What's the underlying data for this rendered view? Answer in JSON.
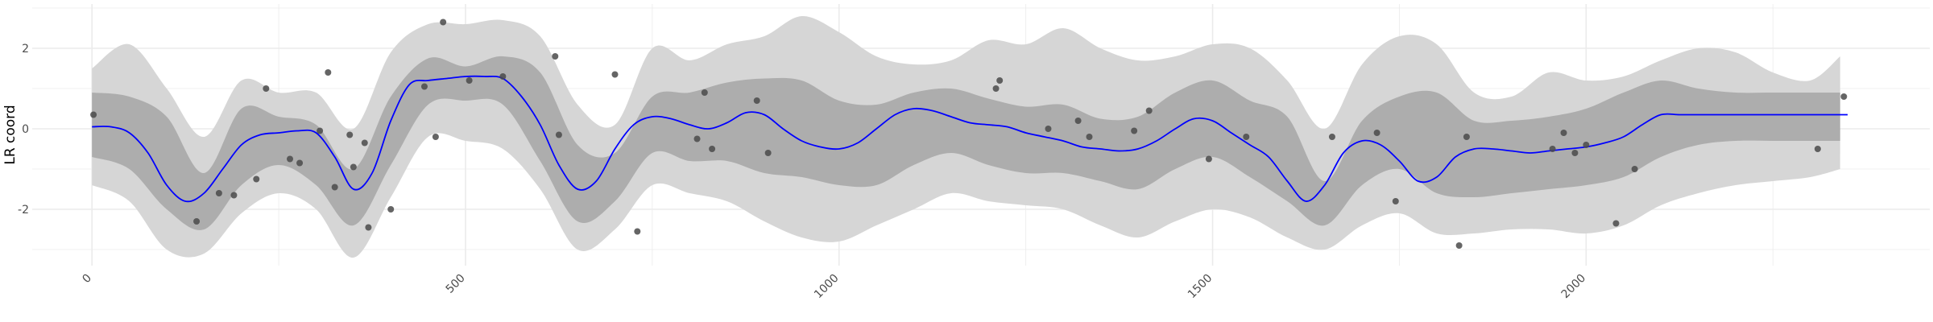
{
  "chart_data": {
    "type": "line",
    "title": "",
    "xlabel": "",
    "ylabel": "LR coord",
    "xlim": [
      -80,
      2460
    ],
    "ylim": [
      -3.4,
      3.1
    ],
    "x_ticks": [
      0,
      500,
      1000,
      1500,
      2000
    ],
    "x_tick_labels": [
      "0",
      "500",
      "1000",
      "1500",
      "2000"
    ],
    "y_ticks": [
      -2,
      0,
      2
    ],
    "y_tick_labels": [
      "-2",
      "0",
      "2"
    ],
    "grid": true,
    "colors": {
      "line": "#0000ff",
      "inner_band": "#adadad",
      "outer_band": "#d6d6d6",
      "points": "#4a4a4a",
      "grid": "#ebebeb"
    },
    "series": [
      {
        "type": "line",
        "x": [
          0,
          25,
          50,
          75,
          100,
          125,
          150,
          175,
          200,
          225,
          250,
          275,
          300,
          325,
          350,
          375,
          400,
          425,
          450,
          475,
          500,
          525,
          550,
          575,
          600,
          625,
          650,
          675,
          700,
          725,
          750,
          775,
          800,
          825,
          850,
          875,
          900,
          925,
          950,
          975,
          1000,
          1025,
          1050,
          1075,
          1100,
          1125,
          1150,
          1175,
          1200,
          1225,
          1250,
          1275,
          1300,
          1325,
          1350,
          1375,
          1400,
          1425,
          1450,
          1475,
          1500,
          1525,
          1550,
          1575,
          1600,
          1625,
          1650,
          1675,
          1700,
          1725,
          1750,
          1775,
          1800,
          1825,
          1850,
          1875,
          1900,
          1925,
          1950,
          1975,
          2000,
          2025,
          2050,
          2075,
          2100,
          2125,
          2150,
          2175,
          2200,
          2225,
          2250,
          2275,
          2300,
          2325,
          2350
        ],
        "values": [
          0.05,
          0.05,
          -0.1,
          -0.6,
          -1.4,
          -1.8,
          -1.6,
          -1.0,
          -0.4,
          -0.15,
          -0.1,
          -0.05,
          -0.1,
          -0.7,
          -1.5,
          -1.1,
          0.2,
          1.1,
          1.2,
          1.25,
          1.3,
          1.3,
          1.25,
          0.8,
          0.1,
          -0.9,
          -1.5,
          -1.3,
          -0.5,
          0.1,
          0.3,
          0.25,
          0.1,
          0.0,
          0.15,
          0.4,
          0.35,
          0.0,
          -0.3,
          -0.45,
          -0.5,
          -0.35,
          0.0,
          0.35,
          0.5,
          0.45,
          0.3,
          0.15,
          0.1,
          0.05,
          -0.1,
          -0.2,
          -0.3,
          -0.45,
          -0.5,
          -0.55,
          -0.5,
          -0.3,
          0.0,
          0.25,
          0.2,
          -0.1,
          -0.4,
          -0.7,
          -1.3,
          -1.8,
          -1.4,
          -0.6,
          -0.3,
          -0.4,
          -0.8,
          -1.3,
          -1.2,
          -0.7,
          -0.5,
          -0.5,
          -0.55,
          -0.6,
          -0.55,
          -0.5,
          -0.45,
          -0.35,
          -0.2,
          0.1,
          0.35,
          0.35,
          0.35,
          0.35,
          0.35,
          0.35,
          0.35,
          0.35,
          0.35,
          0.35,
          0.35
        ]
      },
      {
        "type": "band",
        "level": "inner",
        "x": [
          0,
          50,
          100,
          150,
          200,
          250,
          300,
          350,
          400,
          450,
          500,
          550,
          600,
          650,
          700,
          750,
          800,
          850,
          900,
          950,
          1000,
          1050,
          1100,
          1150,
          1200,
          1250,
          1300,
          1350,
          1400,
          1450,
          1500,
          1550,
          1600,
          1650,
          1700,
          1750,
          1800,
          1850,
          1900,
          1950,
          2000,
          2050,
          2100,
          2150,
          2200,
          2250,
          2300,
          2340
        ],
        "upper": [
          0.9,
          0.8,
          0.3,
          -1.1,
          0.5,
          0.3,
          0.1,
          -1.0,
          0.8,
          1.75,
          1.55,
          1.8,
          1.4,
          -0.4,
          -0.6,
          0.8,
          0.9,
          1.15,
          1.25,
          1.2,
          0.7,
          0.6,
          0.9,
          1.0,
          0.75,
          0.55,
          0.6,
          0.25,
          0.3,
          0.9,
          1.2,
          0.7,
          0.3,
          -1.3,
          0.2,
          0.8,
          0.9,
          0.2,
          0.2,
          0.3,
          0.5,
          0.9,
          1.2,
          1.0,
          0.9,
          0.9,
          0.9,
          0.9
        ],
        "lower": [
          -0.7,
          -1.0,
          -2.0,
          -2.5,
          -1.4,
          -0.9,
          -1.4,
          -2.4,
          -0.9,
          0.6,
          0.7,
          0.6,
          -0.8,
          -2.3,
          -1.8,
          -0.6,
          -0.8,
          -0.8,
          -1.1,
          -1.2,
          -1.4,
          -1.4,
          -0.9,
          -0.6,
          -0.9,
          -1.1,
          -1.1,
          -1.3,
          -1.5,
          -1.0,
          -0.7,
          -1.2,
          -1.8,
          -2.4,
          -1.4,
          -1.0,
          -1.6,
          -1.7,
          -1.6,
          -1.5,
          -1.4,
          -1.2,
          -0.7,
          -0.4,
          -0.3,
          -0.3,
          -0.3,
          -0.3
        ]
      },
      {
        "type": "band",
        "level": "outer",
        "x": [
          0,
          50,
          100,
          150,
          200,
          250,
          300,
          350,
          400,
          450,
          500,
          550,
          600,
          650,
          700,
          750,
          800,
          850,
          900,
          950,
          1000,
          1050,
          1100,
          1150,
          1200,
          1250,
          1300,
          1350,
          1400,
          1450,
          1500,
          1550,
          1600,
          1650,
          1700,
          1750,
          1800,
          1850,
          1900,
          1950,
          2000,
          2050,
          2100,
          2150,
          2200,
          2250,
          2300,
          2340
        ],
        "upper": [
          1.5,
          2.1,
          1.0,
          -0.2,
          1.2,
          0.9,
          0.9,
          0.0,
          1.9,
          2.6,
          2.6,
          2.7,
          2.3,
          0.6,
          0.1,
          2.0,
          1.7,
          2.1,
          2.3,
          2.8,
          2.4,
          1.8,
          1.6,
          1.7,
          2.2,
          2.1,
          2.5,
          2.0,
          1.7,
          1.8,
          2.1,
          2.0,
          1.2,
          0.0,
          1.6,
          2.3,
          2.1,
          0.9,
          0.8,
          1.4,
          1.2,
          1.3,
          1.7,
          2.0,
          1.9,
          1.4,
          1.2,
          1.8
        ],
        "lower": [
          -1.4,
          -1.8,
          -3.0,
          -3.1,
          -2.1,
          -1.6,
          -2.0,
          -3.2,
          -1.7,
          -0.2,
          -0.3,
          -0.5,
          -1.5,
          -3.0,
          -2.5,
          -1.4,
          -1.6,
          -1.8,
          -2.3,
          -2.7,
          -2.8,
          -2.4,
          -2.0,
          -1.6,
          -1.8,
          -1.9,
          -2.0,
          -2.4,
          -2.7,
          -2.3,
          -2.0,
          -2.2,
          -2.7,
          -3.0,
          -2.4,
          -2.1,
          -2.6,
          -2.6,
          -2.5,
          -2.5,
          -2.6,
          -2.4,
          -1.9,
          -1.6,
          -1.4,
          -1.3,
          -1.2,
          -1.0
        ]
      },
      {
        "type": "scatter",
        "x": [
          2,
          140,
          170,
          190,
          220,
          233,
          265,
          278,
          305,
          316,
          325,
          345,
          350,
          365,
          370,
          400,
          445,
          460,
          470,
          505,
          550,
          620,
          625,
          700,
          730,
          810,
          820,
          830,
          890,
          905,
          1210,
          1215,
          1280,
          1320,
          1335,
          1395,
          1415,
          1495,
          1545,
          1660,
          1720,
          1745,
          1830,
          1840,
          1955,
          1970,
          1985,
          2000,
          2040,
          2065,
          2310,
          2345
        ],
        "y": [
          0.35,
          -2.3,
          -1.6,
          -1.65,
          -1.25,
          1.0,
          -0.75,
          -0.85,
          -0.05,
          1.4,
          -1.45,
          -0.15,
          -0.95,
          -0.35,
          -2.45,
          -2.0,
          1.05,
          -0.2,
          2.65,
          1.2,
          1.3,
          1.8,
          -0.15,
          1.35,
          -2.55,
          -0.25,
          0.9,
          -0.5,
          0.7,
          -0.6,
          1.0,
          1.2,
          0.0,
          0.2,
          -0.2,
          -0.05,
          0.45,
          -0.75,
          -0.2,
          -0.2,
          -0.1,
          -1.8,
          -2.9,
          -0.2,
          -0.5,
          -0.1,
          -0.6,
          -0.4,
          -2.35,
          -1.0,
          -0.5,
          0.8
        ]
      }
    ]
  }
}
